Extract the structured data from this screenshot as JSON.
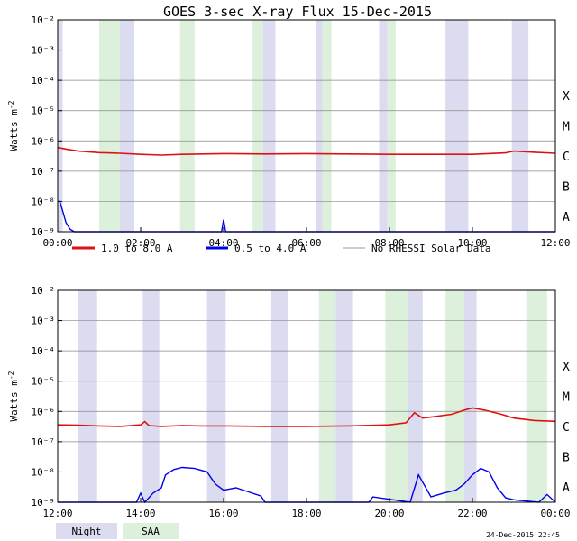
{
  "title": "GOES 3-sec X-ray Flux   15-Dec-2015",
  "footer": {
    "timestamp": "24-Dec-2015 22:45",
    "night_label": "Night",
    "saa_label": "SAA"
  },
  "colors": {
    "long_channel": "#dd1111",
    "short_channel": "#0000ee",
    "no_rhessi": "#999999",
    "night_band": "#dcdcf0",
    "saa_band": "#dcf0dc",
    "grid": "#888888"
  },
  "chart_data": [
    {
      "type": "line",
      "ylabel": "Watts m",
      "ylabel_sup": "-2",
      "y_scale": "log",
      "ylim": [
        1e-09,
        0.01
      ],
      "y_ticks": [
        "10⁻²",
        "10⁻³",
        "10⁻⁴",
        "10⁻⁵",
        "10⁻⁶",
        "10⁻⁷",
        "10⁻⁸",
        "10⁻⁹"
      ],
      "xlim_hours": [
        0,
        12
      ],
      "x_tick_labels": [
        "00:00",
        "02:00",
        "04:00",
        "06:00",
        "08:00",
        "10:00",
        "12:00"
      ],
      "flare_classes": [
        "X",
        "M",
        "C",
        "B",
        "A"
      ],
      "night_bands": [
        [
          0.0,
          0.12
        ],
        [
          1.5,
          1.85
        ],
        [
          4.95,
          5.25
        ],
        [
          6.22,
          6.38
        ],
        [
          7.75,
          7.95
        ],
        [
          9.35,
          9.9
        ],
        [
          10.95,
          11.35
        ]
      ],
      "saa_bands": [
        [
          1.0,
          1.5
        ],
        [
          2.95,
          3.3
        ],
        [
          4.7,
          4.95
        ],
        [
          6.38,
          6.6
        ],
        [
          7.95,
          8.15
        ]
      ],
      "series": [
        {
          "name": "1.0 to 8.0 A",
          "channel": "long",
          "x": [
            0.0,
            0.25,
            0.5,
            1.0,
            1.5,
            2.0,
            2.5,
            3.0,
            4.0,
            5.0,
            6.0,
            7.0,
            8.0,
            9.0,
            10.0,
            10.8,
            11.0,
            11.5,
            12.0
          ],
          "y": [
            6e-07,
            5.2e-07,
            4.6e-07,
            4.1e-07,
            3.9e-07,
            3.6e-07,
            3.4e-07,
            3.6e-07,
            3.8e-07,
            3.7e-07,
            3.8e-07,
            3.7e-07,
            3.6e-07,
            3.6e-07,
            3.6e-07,
            4e-07,
            4.6e-07,
            4.2e-07,
            3.9e-07
          ]
        },
        {
          "name": "0.5 to 4.0 A",
          "channel": "short",
          "x": [
            0.0,
            0.05,
            0.1,
            0.2,
            0.3,
            0.4,
            0.5,
            0.6,
            0.75,
            1.0,
            3.9,
            3.95,
            4.0,
            4.05,
            4.1,
            12.0
          ],
          "y": [
            1e-08,
            1e-08,
            6e-09,
            2e-09,
            1.2e-09,
            1e-09,
            1e-09,
            1e-09,
            1e-09,
            1e-09,
            1e-09,
            1e-09,
            2.5e-09,
            1e-09,
            1e-09,
            1e-09
          ]
        }
      ]
    },
    {
      "type": "line",
      "ylabel": "Watts m",
      "ylabel_sup": "-2",
      "y_scale": "log",
      "ylim": [
        1e-09,
        0.01
      ],
      "y_ticks": [
        "10⁻²",
        "10⁻³",
        "10⁻⁴",
        "10⁻⁵",
        "10⁻⁶",
        "10⁻⁷",
        "10⁻⁸",
        "10⁻⁹"
      ],
      "xlim_hours": [
        12,
        24
      ],
      "x_tick_labels": [
        "12:00",
        "14:00",
        "16:00",
        "18:00",
        "20:00",
        "22:00",
        "00:00"
      ],
      "flare_classes": [
        "X",
        "M",
        "C",
        "B",
        "A"
      ],
      "night_bands": [
        [
          12.5,
          12.95
        ],
        [
          14.05,
          14.45
        ],
        [
          15.6,
          16.05
        ],
        [
          17.15,
          17.55
        ],
        [
          18.7,
          19.1
        ],
        [
          20.45,
          20.8
        ],
        [
          21.8,
          22.1
        ]
      ],
      "saa_bands": [
        [
          18.3,
          18.7
        ],
        [
          19.9,
          20.45
        ],
        [
          21.35,
          21.8
        ],
        [
          23.3,
          23.8
        ]
      ],
      "series": [
        {
          "name": "1.0 to 8.0 A",
          "channel": "long",
          "x": [
            12.0,
            12.5,
            13.0,
            13.5,
            14.0,
            14.1,
            14.2,
            14.5,
            15.0,
            15.5,
            16.0,
            17.0,
            18.0,
            19.0,
            20.0,
            20.4,
            20.6,
            20.8,
            21.0,
            21.5,
            21.8,
            22.0,
            22.3,
            22.7,
            23.0,
            23.5,
            24.0
          ],
          "y": [
            3.6e-07,
            3.5e-07,
            3.3e-07,
            3.2e-07,
            3.6e-07,
            4.6e-07,
            3.4e-07,
            3.2e-07,
            3.4e-07,
            3.3e-07,
            3.3e-07,
            3.2e-07,
            3.2e-07,
            3.3e-07,
            3.6e-07,
            4.2e-07,
            9e-07,
            6e-07,
            6.5e-07,
            8e-07,
            1.1e-06,
            1.3e-06,
            1.1e-06,
            8e-07,
            6e-07,
            5e-07,
            4.7e-07
          ]
        },
        {
          "name": "0.5 to 4.0 A",
          "channel": "short",
          "x": [
            12.0,
            13.9,
            14.0,
            14.1,
            14.3,
            14.5,
            14.6,
            14.8,
            15.0,
            15.3,
            15.6,
            15.8,
            16.0,
            16.3,
            16.6,
            16.9,
            17.0,
            19.5,
            19.6,
            20.5,
            20.7,
            21.0,
            21.3,
            21.6,
            21.8,
            22.0,
            22.2,
            22.4,
            22.6,
            22.8,
            23.0,
            23.6,
            23.8,
            24.0
          ],
          "y": [
            1e-09,
            1e-09,
            2e-09,
            1e-09,
            2e-09,
            3e-09,
            8e-09,
            1.2e-08,
            1.4e-08,
            1.3e-08,
            1e-08,
            4e-09,
            2.5e-09,
            3e-09,
            2.2e-09,
            1.6e-09,
            1e-09,
            1e-09,
            1.5e-09,
            1e-09,
            8e-09,
            1.5e-09,
            2e-09,
            2.5e-09,
            4e-09,
            8e-09,
            1.3e-08,
            1e-08,
            3e-09,
            1.4e-09,
            1.2e-09,
            1e-09,
            1.8e-09,
            1e-09
          ]
        }
      ]
    }
  ],
  "legend": {
    "entries": [
      "1.0 to 8.0 A",
      "0.5 to 4.0 A",
      "No RHESSI Solar Data"
    ]
  }
}
